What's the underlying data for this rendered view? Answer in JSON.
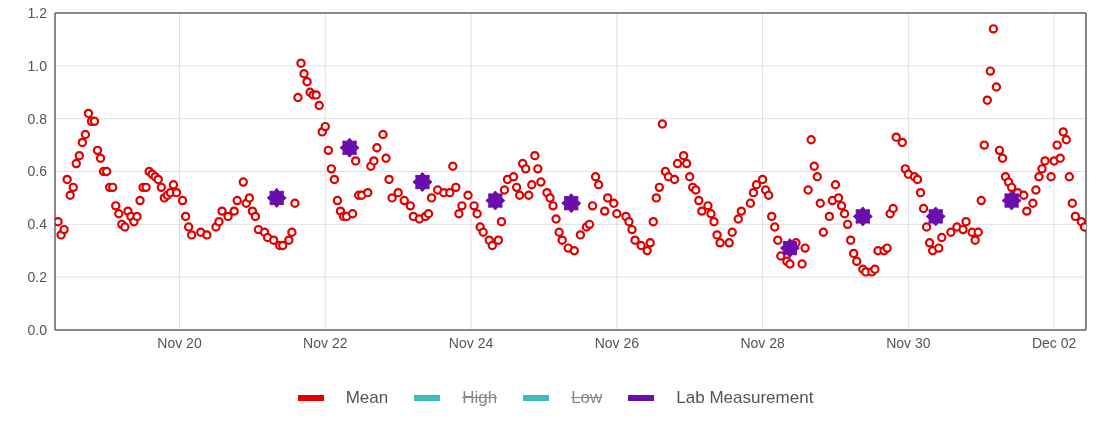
{
  "chart_data": {
    "type": "scatter",
    "grid": true,
    "legend": "bottom",
    "xlim": [
      "--11-18T07:00",
      "--12-02T10:30"
    ],
    "xticks": [
      {
        "value": "--11-20",
        "label": "Nov 20"
      },
      {
        "value": "--11-22",
        "label": "Nov 22"
      },
      {
        "value": "--11-24",
        "label": "Nov 24"
      },
      {
        "value": "--11-26",
        "label": "Nov 26"
      },
      {
        "value": "--11-28",
        "label": "Nov 28"
      },
      {
        "value": "--11-30",
        "label": "Nov 30"
      },
      {
        "value": "--12-02",
        "label": "Dec 02"
      }
    ],
    "ylim": [
      0,
      1.2
    ],
    "yticks": [
      {
        "value": 0,
        "label": "0.0"
      },
      {
        "value": 0.2,
        "label": "0.2"
      },
      {
        "value": 0.4,
        "label": "0.4"
      },
      {
        "value": 0.6,
        "label": "0.6"
      },
      {
        "value": 0.8,
        "label": "0.8"
      },
      {
        "value": 1,
        "label": "1.0"
      },
      {
        "value": 1.2,
        "label": "1.2"
      }
    ],
    "series": [
      {
        "name": "Mean",
        "color": "#e00000",
        "marker": "circle",
        "x": [
          "--11-18T08:00",
          "--11-18T09:00",
          "--11-18T10:00",
          "--11-18T11:00",
          "--11-18T12:00",
          "--11-18T13:00",
          "--11-18T14:00",
          "--11-18T15:00",
          "--11-18T16:00",
          "--11-18T17:00",
          "--11-18T18:00",
          "--11-18T19:00",
          "--11-18T20:00",
          "--11-18T21:00",
          "--11-18T22:00",
          "--11-18T23:00",
          "--11-19T00:00",
          "--11-19T01:00",
          "--11-19T02:00",
          "--11-19T03:00",
          "--11-19T04:00",
          "--11-19T05:00",
          "--11-19T06:00",
          "--11-19T07:00",
          "--11-19T08:00",
          "--11-19T09:00",
          "--11-19T10:00",
          "--11-19T11:00",
          "--11-19T12:00",
          "--11-19T13:00",
          "--11-19T14:00",
          "--11-19T15:00",
          "--11-19T16:00",
          "--11-19T17:00",
          "--11-19T18:00",
          "--11-19T19:00",
          "--11-19T20:00",
          "--11-19T21:00",
          "--11-19T22:00",
          "--11-19T23:00",
          "--11-20T01:00",
          "--11-20T02:00",
          "--11-20T03:00",
          "--11-20T04:00",
          "--11-20T07:00",
          "--11-20T09:00",
          "--11-20T12:00",
          "--11-20T13:00",
          "--11-20T14:00",
          "--11-20T16:00",
          "--11-20T18:00",
          "--11-20T19:00",
          "--11-20T21:00",
          "--11-20T22:00",
          "--11-20T23:00",
          "--11-21T00:00",
          "--11-21T01:00",
          "--11-21T02:00",
          "--11-21T04:00",
          "--11-21T05:00",
          "--11-21T07:00",
          "--11-21T09:00",
          "--11-21T10:00",
          "--11-21T12:00",
          "--11-21T13:00",
          "--11-21T14:00",
          "--11-21T15:00",
          "--11-21T16:00",
          "--11-21T17:00",
          "--11-21T18:00",
          "--11-21T19:00",
          "--11-21T20:00",
          "--11-21T21:00",
          "--11-21T22:00",
          "--11-21T23:00",
          "--11-22T00:00",
          "--11-22T01:00",
          "--11-22T02:00",
          "--11-22T03:00",
          "--11-22T04:00",
          "--11-22T05:00",
          "--11-22T06:00",
          "--11-22T07:00",
          "--11-22T09:00",
          "--11-22T10:00",
          "--11-22T11:00",
          "--11-22T12:00",
          "--11-22T14:00",
          "--11-22T15:00",
          "--11-22T16:00",
          "--11-22T17:00",
          "--11-22T19:00",
          "--11-22T20:00",
          "--11-22T21:00",
          "--11-22T22:00",
          "--11-23T00:00",
          "--11-23T02:00",
          "--11-23T04:00",
          "--11-23T05:00",
          "--11-23T07:00",
          "--11-23T09:00",
          "--11-23T10:00",
          "--11-23T11:00",
          "--11-23T13:00",
          "--11-23T15:00",
          "--11-23T17:00",
          "--11-23T18:00",
          "--11-23T19:00",
          "--11-23T20:00",
          "--11-23T21:00",
          "--11-23T23:00",
          "--11-24T01:00",
          "--11-24T02:00",
          "--11-24T03:00",
          "--11-24T04:00",
          "--11-24T06:00",
          "--11-24T07:00",
          "--11-24T09:00",
          "--11-24T10:00",
          "--11-24T11:00",
          "--11-24T12:00",
          "--11-24T14:00",
          "--11-24T15:00",
          "--11-24T16:00",
          "--11-24T17:00",
          "--11-24T18:00",
          "--11-24T19:00",
          "--11-24T20:00",
          "--11-24T21:00",
          "--11-24T22:00",
          "--11-24T23:00",
          "--11-25T01:00",
          "--11-25T02:00",
          "--11-25T03:00",
          "--11-25T04:00",
          "--11-25T05:00",
          "--11-25T06:00",
          "--11-25T08:00",
          "--11-25T10:00",
          "--11-25T12:00",
          "--11-25T14:00",
          "--11-25T15:00",
          "--11-25T16:00",
          "--11-25T17:00",
          "--11-25T18:00",
          "--11-25T20:00",
          "--11-25T21:00",
          "--11-25T23:00",
          "--11-26T00:00",
          "--11-26T03:00",
          "--11-26T04:00",
          "--11-26T05:00",
          "--11-26T06:00",
          "--11-26T08:00",
          "--11-26T10:00",
          "--11-26T11:00",
          "--11-26T12:00",
          "--11-26T13:00",
          "--11-26T14:00",
          "--11-26T15:00",
          "--11-26T16:00",
          "--11-26T17:00",
          "--11-26T19:00",
          "--11-26T20:00",
          "--11-26T22:00",
          "--11-26T23:00",
          "--11-27T00:00",
          "--11-27T01:00",
          "--11-27T02:00",
          "--11-27T03:00",
          "--11-27T04:00",
          "--11-27T06:00",
          "--11-27T07:00",
          "--11-27T08:00",
          "--11-27T09:00",
          "--11-27T10:00",
          "--11-27T13:00",
          "--11-27T14:00",
          "--11-27T16:00",
          "--11-27T17:00",
          "--11-27T20:00",
          "--11-27T21:00",
          "--11-27T22:00",
          "--11-28T00:00",
          "--11-28T01:00",
          "--11-28T02:00",
          "--11-28T03:00",
          "--11-28T04:00",
          "--11-28T05:00",
          "--11-28T06:00",
          "--11-28T08:00",
          "--11-28T09:00",
          "--11-28T11:00",
          "--11-28T13:00",
          "--11-28T14:00",
          "--11-28T15:00",
          "--11-28T16:00",
          "--11-28T17:00",
          "--11-28T18:00",
          "--11-28T19:00",
          "--11-28T20:00",
          "--11-28T22:00",
          "--11-28T23:00",
          "--11-29T00:00",
          "--11-29T01:00",
          "--11-29T02:00",
          "--11-29T03:00",
          "--11-29T04:00",
          "--11-29T05:00",
          "--11-29T06:00",
          "--11-29T07:00",
          "--11-29T09:00",
          "--11-29T10:00",
          "--11-29T12:00",
          "--11-29T13:00",
          "--11-29T14:00",
          "--11-29T16:00",
          "--11-29T17:00",
          "--11-29T18:00",
          "--11-29T19:00",
          "--11-29T20:00",
          "--11-29T22:00",
          "--11-29T23:00",
          "--11-30T00:00",
          "--11-30T02:00",
          "--11-30T03:00",
          "--11-30T04:00",
          "--11-30T05:00",
          "--11-30T06:00",
          "--11-30T07:00",
          "--11-30T08:00",
          "--11-30T10:00",
          "--11-30T11:00",
          "--11-30T14:00",
          "--11-30T16:00",
          "--11-30T18:00",
          "--11-30T19:00",
          "--11-30T21:00",
          "--11-30T22:00",
          "--11-30T23:00",
          "--12-01T00:00",
          "--12-01T01:00",
          "--12-01T02:00",
          "--12-01T03:00",
          "--12-01T04:00",
          "--12-01T05:00",
          "--12-01T06:00",
          "--12-01T07:00",
          "--12-01T08:00",
          "--12-01T09:00",
          "--12-01T10:00",
          "--12-01T12:00",
          "--12-01T14:00",
          "--12-01T15:00",
          "--12-01T17:00",
          "--12-01T18:00",
          "--12-01T19:00",
          "--12-01T20:00",
          "--12-01T21:00",
          "--12-01T23:00",
          "--12-02T00:00",
          "--12-02T01:00",
          "--12-02T02:00",
          "--12-02T03:00",
          "--12-02T04:00",
          "--12-02T05:00",
          "--12-02T06:00",
          "--12-02T07:00",
          "--12-02T09:00",
          "--12-02T10:00"
        ],
        "values": [
          0.41,
          0.36,
          0.38,
          0.57,
          0.51,
          0.54,
          0.63,
          0.66,
          0.71,
          0.74,
          0.82,
          0.79,
          0.79,
          0.68,
          0.65,
          0.6,
          0.6,
          0.54,
          0.54,
          0.47,
          0.44,
          0.4,
          0.39,
          0.45,
          0.43,
          0.41,
          0.43,
          0.49,
          0.54,
          0.54,
          0.6,
          0.59,
          0.58,
          0.57,
          0.54,
          0.5,
          0.51,
          0.52,
          0.55,
          0.52,
          0.49,
          0.43,
          0.39,
          0.36,
          0.37,
          0.36,
          0.39,
          0.41,
          0.45,
          0.43,
          0.45,
          0.49,
          0.56,
          0.48,
          0.5,
          0.45,
          0.43,
          0.38,
          0.37,
          0.35,
          0.34,
          0.32,
          0.32,
          0.34,
          0.37,
          0.48,
          0.88,
          1.01,
          0.97,
          0.94,
          0.9,
          0.89,
          0.89,
          0.85,
          0.75,
          0.77,
          0.68,
          0.61,
          0.57,
          0.49,
          0.45,
          0.43,
          0.43,
          0.44,
          0.64,
          0.51,
          0.51,
          0.52,
          0.62,
          0.64,
          0.69,
          0.74,
          0.65,
          0.57,
          0.5,
          0.52,
          0.49,
          0.47,
          0.43,
          0.42,
          0.43,
          0.44,
          0.5,
          0.53,
          0.52,
          0.52,
          0.62,
          0.54,
          0.44,
          0.47,
          0.51,
          0.47,
          0.44,
          0.39,
          0.37,
          0.34,
          0.32,
          0.34,
          0.41,
          0.53,
          0.57,
          0.58,
          0.54,
          0.51,
          0.63,
          0.61,
          0.51,
          0.55,
          0.66,
          0.61,
          0.56,
          0.52,
          0.5,
          0.47,
          0.42,
          0.37,
          0.34,
          0.31,
          0.3,
          0.36,
          0.39,
          0.4,
          0.47,
          0.58,
          0.55,
          0.45,
          0.5,
          0.48,
          0.44,
          0.43,
          0.41,
          0.38,
          0.34,
          0.32,
          0.3,
          0.33,
          0.41,
          0.5,
          0.54,
          0.78,
          0.6,
          0.58,
          0.57,
          0.63,
          0.66,
          0.63,
          0.58,
          0.54,
          0.53,
          0.49,
          0.45,
          0.47,
          0.44,
          0.41,
          0.36,
          0.33,
          0.33,
          0.37,
          0.42,
          0.45,
          0.48,
          0.52,
          0.55,
          0.57,
          0.53,
          0.51,
          0.43,
          0.39,
          0.34,
          0.28,
          0.26,
          0.25,
          0.33,
          0.25,
          0.31,
          0.53,
          0.72,
          0.62,
          0.58,
          0.48,
          0.37,
          0.43,
          0.49,
          0.55,
          0.5,
          0.47,
          0.44,
          0.4,
          0.34,
          0.29,
          0.26,
          0.23,
          0.22,
          0.22,
          0.23,
          0.3,
          0.3,
          0.31,
          0.44,
          0.46,
          0.73,
          0.71,
          0.61,
          0.59,
          0.58,
          0.57,
          0.52,
          0.46,
          0.39,
          0.33,
          0.3,
          0.31,
          0.35,
          0.37,
          0.39,
          0.38,
          0.41,
          0.37,
          0.34,
          0.37,
          0.49,
          0.7,
          0.87,
          0.98,
          1.14,
          0.92,
          0.68,
          0.65,
          0.58,
          0.56,
          0.54,
          0.52,
          0.51,
          0.45,
          0.48,
          0.53,
          0.58,
          0.61,
          0.64,
          0.58,
          0.64,
          0.7,
          0.65,
          0.75,
          0.72,
          0.58,
          0.48,
          0.43,
          0.41,
          0.39
        ]
      },
      {
        "name": "High",
        "color": "#3dbdbd"
      },
      {
        "name": "Low",
        "color": "#3dbdbd"
      },
      {
        "name": "Lab Measurement",
        "color": "#6a0dad",
        "marker": "star",
        "x": [
          "--11-21T08:00",
          "--11-22T08:00",
          "--11-23T08:00",
          "--11-24T08:00",
          "--11-25T09:00",
          "--11-28T09:00",
          "--11-29T09:00",
          "--11-30T09:00",
          "--12-01T10:00"
        ],
        "values": [
          0.5,
          0.69,
          0.56,
          0.49,
          0.48,
          0.31,
          0.43,
          0.43,
          0.49
        ]
      }
    ]
  }
}
